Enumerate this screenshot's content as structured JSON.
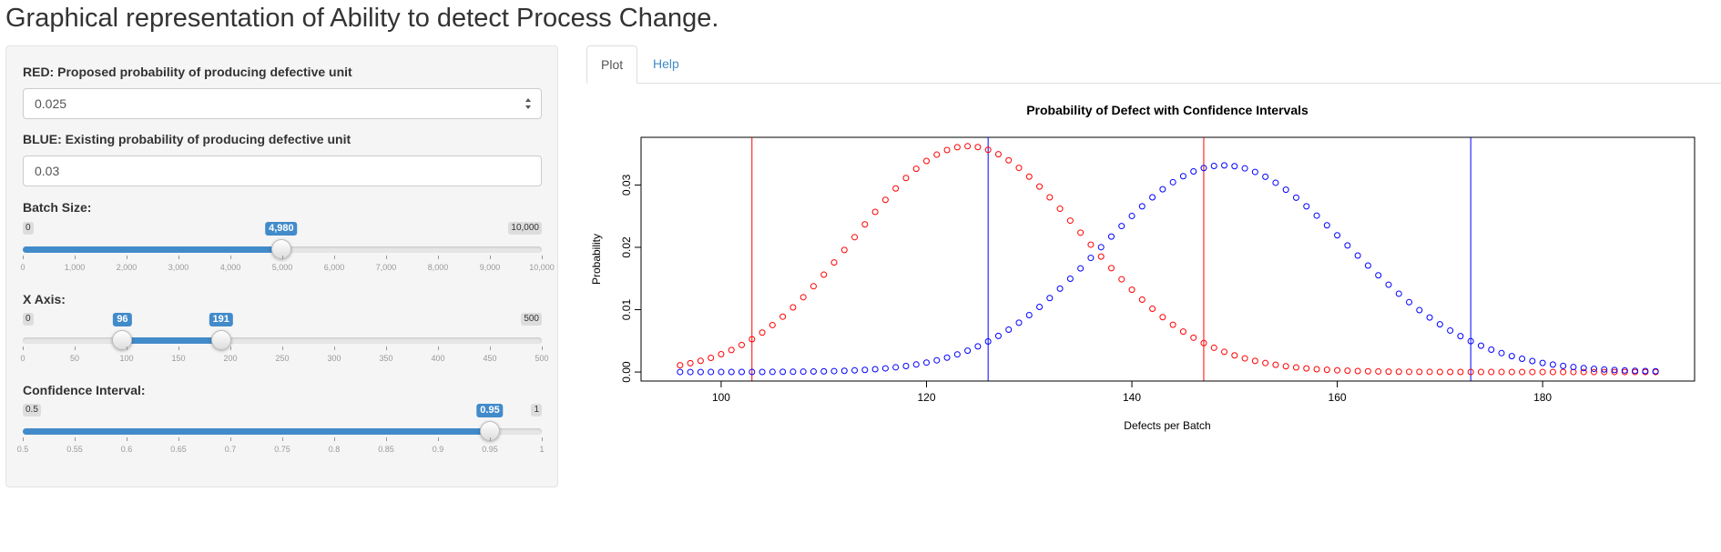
{
  "page": {
    "title": "Graphical representation of Ability to detect Process Change."
  },
  "sidebar": {
    "red_prob": {
      "label": "RED: Proposed probability of producing defective unit",
      "value": "0.025"
    },
    "blue_prob": {
      "label": "BLUE: Existing probability of producing defective unit",
      "value": "0.03"
    },
    "batch_size": {
      "label": "Batch Size:",
      "min": 0,
      "max": 10000,
      "min_label": "0",
      "max_label": "10,000",
      "value": 4980,
      "value_label": "4,980",
      "ticks": [
        "0",
        "1,000",
        "2,000",
        "3,000",
        "4,000",
        "5,000",
        "6,000",
        "7,000",
        "8,000",
        "9,000",
        "10,000"
      ]
    },
    "x_axis": {
      "label": "X Axis:",
      "min": 0,
      "max": 500,
      "min_label": "0",
      "max_label": "500",
      "from": 96,
      "to": 191,
      "from_label": "96",
      "to_label": "191",
      "ticks": [
        "0",
        "50",
        "100",
        "150",
        "200",
        "250",
        "300",
        "350",
        "400",
        "450",
        "500"
      ]
    },
    "confidence": {
      "label": "Confidence Interval:",
      "min": 0.5,
      "max": 1,
      "min_label": "0.5",
      "max_label": "1",
      "value": 0.95,
      "value_label": "0.95",
      "ticks": [
        "0.5",
        "0.55",
        "0.6",
        "0.65",
        "0.7",
        "0.75",
        "0.8",
        "0.85",
        "0.9",
        "0.95",
        "1"
      ]
    }
  },
  "tabs": [
    {
      "label": "Plot",
      "active": true
    },
    {
      "label": "Help",
      "active": false
    }
  ],
  "colors": {
    "red": "#ff0000",
    "blue": "#0000ff",
    "accent": "#428bca"
  },
  "chart_data": {
    "type": "scatter",
    "title": "Probability of Defect with Confidence Intervals",
    "xlabel": "Defects per Batch",
    "ylabel": "Probability",
    "xlim": [
      96,
      191
    ],
    "ylim": [
      0,
      0.0362
    ],
    "xticks": [
      100,
      120,
      140,
      160,
      180
    ],
    "xtick_labels": [
      "100",
      "120",
      "140",
      "160",
      "180"
    ],
    "yticks": [
      0,
      0.01,
      0.02,
      0.03
    ],
    "ytick_labels": [
      "0.00",
      "0.01",
      "0.02",
      "0.03"
    ],
    "series": [
      {
        "color": "#ff0000",
        "n": 4980,
        "p": 0.025
      },
      {
        "color": "#0000ff",
        "n": 4980,
        "p": 0.03
      }
    ],
    "vlines": [
      {
        "x": 103,
        "color": "#ff0000"
      },
      {
        "x": 147,
        "color": "#ff0000"
      },
      {
        "x": 126,
        "color": "#0000ff"
      },
      {
        "x": 173,
        "color": "#0000ff"
      }
    ]
  }
}
